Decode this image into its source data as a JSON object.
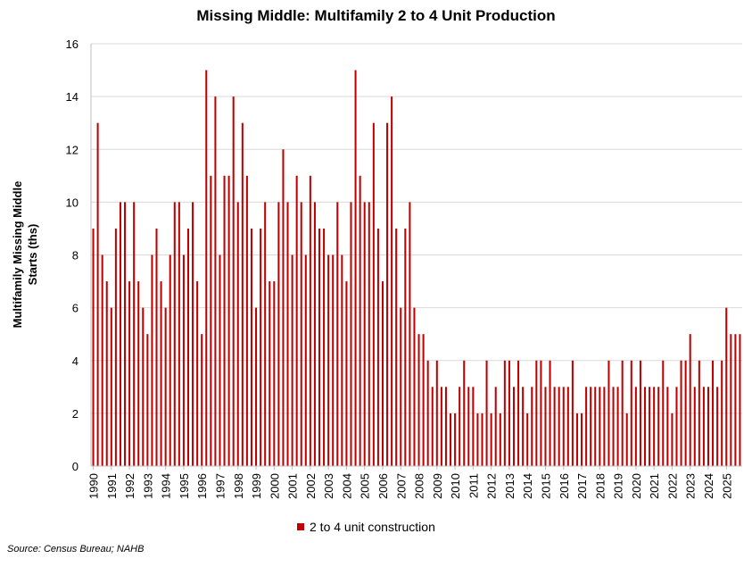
{
  "chart_data": {
    "type": "bar",
    "title": "Missing Middle: Multifamily 2 to 4 Unit Production",
    "ylabel": "Multifamily Missing Middle Starts (ths)",
    "ylabel_lines": [
      "Multifamily Missing Middle",
      "Starts (ths)"
    ],
    "xlabel": "",
    "ylim": [
      0,
      16
    ],
    "yticks": [
      0,
      2,
      4,
      6,
      8,
      10,
      12,
      14,
      16
    ],
    "grid": "horizontal",
    "legend_position": "bottom",
    "color": "#c00000",
    "frequency": "quarterly",
    "x_start": "1990 Q1",
    "year_labels": [
      "1990",
      "1991",
      "1992",
      "1993",
      "1994",
      "1995",
      "1996",
      "1997",
      "1998",
      "1999",
      "2000",
      "2001",
      "2002",
      "2003",
      "2004",
      "2005",
      "2006",
      "2007",
      "2008",
      "2009",
      "2010",
      "2011",
      "2012",
      "2013",
      "2014",
      "2015",
      "2016",
      "2017",
      "2018",
      "2019",
      "2020",
      "2021",
      "2022",
      "2023",
      "2024",
      "2025"
    ],
    "series": [
      {
        "name": "2 to 4 unit construction",
        "values": [
          9,
          13,
          8,
          7,
          6,
          9,
          10,
          10,
          7,
          10,
          7,
          6,
          5,
          8,
          9,
          7,
          6,
          8,
          10,
          10,
          8,
          9,
          10,
          7,
          5,
          15,
          11,
          14,
          8,
          11,
          11,
          14,
          10,
          13,
          11,
          9,
          6,
          9,
          10,
          7,
          7,
          10,
          12,
          10,
          8,
          11,
          10,
          8,
          11,
          10,
          9,
          9,
          8,
          8,
          10,
          8,
          7,
          10,
          15,
          11,
          10,
          10,
          13,
          9,
          7,
          13,
          14,
          9,
          6,
          9,
          10,
          6,
          5,
          5,
          4,
          3,
          4,
          3,
          3,
          2,
          2,
          3,
          4,
          3,
          3,
          2,
          2,
          4,
          2,
          3,
          2,
          4,
          4,
          3,
          4,
          3,
          2,
          3,
          4,
          4,
          3,
          4,
          3,
          3,
          3,
          3,
          4,
          2,
          2,
          3,
          3,
          3,
          3,
          3,
          4,
          3,
          3,
          4,
          2,
          4,
          3,
          4,
          3,
          3,
          3,
          3,
          4,
          3,
          2,
          3,
          4,
          4,
          5,
          3,
          4,
          3,
          3,
          4,
          3,
          4,
          6,
          5,
          5,
          5
        ]
      }
    ]
  },
  "source": "Source: Census Bureau; NAHB"
}
